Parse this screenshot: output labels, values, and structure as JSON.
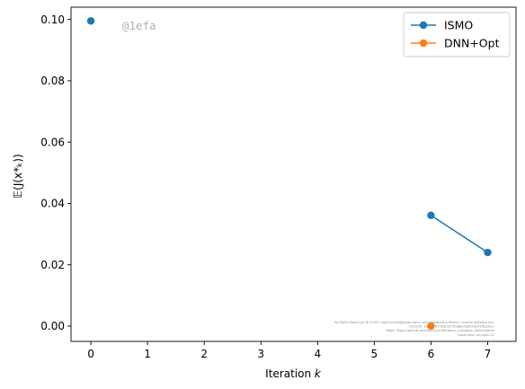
{
  "chart_data": {
    "type": "line",
    "xlabel_prefix": "Iteration ",
    "xlabel_var": "k",
    "ylabel": "𝔼(J(x*ₖ))",
    "xlim": [
      -0.35,
      7.5
    ],
    "ylim": [
      -0.005,
      0.104
    ],
    "xticks": [
      0,
      1,
      2,
      3,
      4,
      5,
      6,
      7
    ],
    "yticks": [
      0.0,
      0.02,
      0.04,
      0.06,
      0.08,
      0.1
    ],
    "ytick_labels": [
      "0.00",
      "0.02",
      "0.04",
      "0.06",
      "0.08",
      "0.10"
    ],
    "grid": false,
    "legend_position": "top-right",
    "series": [
      {
        "name": "ISMO",
        "color": "#1f77b4",
        "points": [
          {
            "x": 0,
            "y": 0.0995,
            "connect": false
          },
          {
            "x": 6,
            "y": 0.0361,
            "connect": true
          },
          {
            "x": 7,
            "y": 0.024,
            "connect": true
          }
        ]
      },
      {
        "name": "DNN+Opt",
        "color": "#ff7f0e",
        "points": [
          {
            "x": 6,
            "y": 0.0,
            "connect": true
          }
        ]
      }
    ]
  },
  "watermark": "@1efa",
  "footnote_lines": [
    "By Kjetil Olsen Lye @ ETHZ <kjetil.o.lye@gmail.com> and Siddhartha Mishra <shmis.ra@ethz.ch>",
    "Commit: 1efa7461783cd17d98be0a62a4e91f8e3ecc",
    "Repo: https://github.com/kjetil-lye/iterative_surrogate_optimization",
    "Hostname: ev-login-21"
  ]
}
